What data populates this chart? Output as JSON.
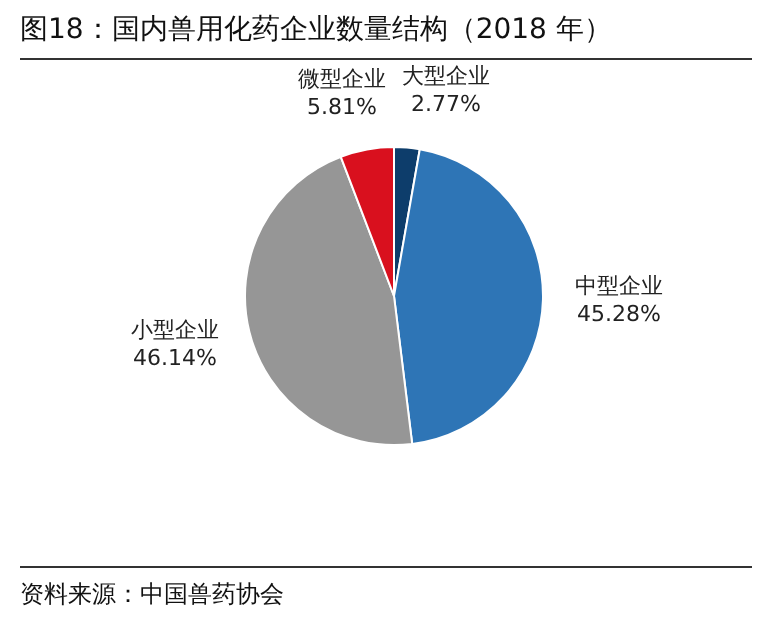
{
  "chart_data": {
    "type": "pie",
    "title": "图18：国内兽用化药企业数量结构（2018 年）",
    "categories": [
      "大型企业",
      "中型企业",
      "小型企业",
      "微型企业"
    ],
    "values": [
      2.77,
      45.28,
      46.14,
      5.81
    ],
    "colors": [
      "#0d3d6b",
      "#2e75b6",
      "#969696",
      "#d9101e"
    ],
    "value_labels": [
      "2.77%",
      "45.28%",
      "46.14%",
      "5.81%"
    ],
    "annotations": [
      "资料来源：中国兽药协会"
    ]
  }
}
